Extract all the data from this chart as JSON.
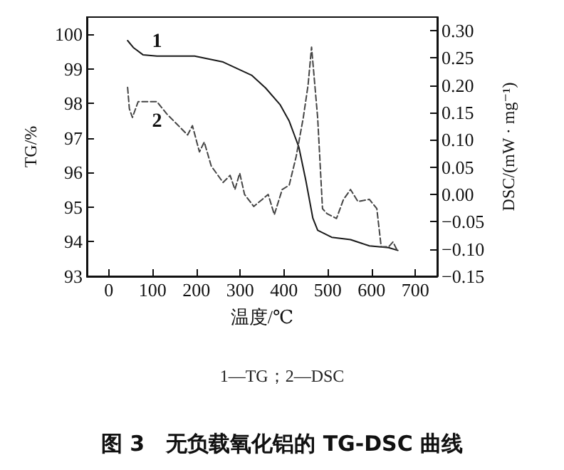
{
  "chart_data": {
    "type": "line",
    "title": "图 3　无负载氧化铝的 TG-DSC 曲线",
    "xlabel": "温度/℃",
    "ylabel": "TG/%",
    "y2label": "DSC/(mW · mg⁻¹)",
    "xlim": [
      -50,
      750
    ],
    "xticks": [
      0,
      100,
      200,
      300,
      400,
      500,
      600,
      700
    ],
    "ylim": [
      93,
      100.5
    ],
    "yticks": [
      93,
      94,
      95,
      96,
      97,
      98,
      99,
      100
    ],
    "y2lim": [
      -0.15,
      0.325
    ],
    "y2ticks": [
      {
        "value": -0.15,
        "label": "−0.15"
      },
      {
        "value": -0.1,
        "label": "−0.10"
      },
      {
        "value": -0.05,
        "label": "−0.05"
      },
      {
        "value": 0,
        "label": "0.00"
      },
      {
        "value": 0.05,
        "label": "0.05"
      },
      {
        "value": 0.1,
        "label": "0.10"
      },
      {
        "value": 0.15,
        "label": "0.15"
      },
      {
        "value": 0.2,
        "label": "0.20"
      },
      {
        "value": 0.25,
        "label": "0.25"
      },
      {
        "value": 0.3,
        "label": "0.30"
      }
    ],
    "grid": false,
    "legend": false,
    "marker": "none",
    "series": [
      {
        "name": "1",
        "color": "#1a1a1a",
        "line_style": "solid",
        "x": [
          43,
          56,
          78,
          110,
          196,
          261,
          326,
          358,
          391,
          412,
          434,
          450,
          466,
          477,
          509,
          552,
          595,
          639,
          660
        ],
        "values": [
          99.82,
          99.62,
          99.41,
          99.37,
          99.37,
          99.2,
          98.82,
          98.45,
          97.97,
          97.49,
          96.74,
          95.77,
          94.68,
          94.33,
          94.13,
          94.06,
          93.88,
          93.83,
          93.75
        ]
      },
      {
        "name": "2",
        "color": "#444444",
        "line_style": "dashed",
        "axis": "y2",
        "x": [
          43,
          47,
          54,
          67,
          110,
          132,
          164,
          180,
          191,
          207,
          218,
          234,
          261,
          277,
          288,
          299,
          310,
          331,
          364,
          378,
          396,
          412,
          428,
          444,
          455,
          463,
          477,
          488,
          498,
          520,
          536,
          552,
          569,
          595,
          612,
          622,
          639,
          649,
          660
        ],
        "values": [
          0.196,
          0.157,
          0.141,
          0.17,
          0.17,
          0.148,
          0.122,
          0.109,
          0.126,
          0.078,
          0.096,
          0.052,
          0.022,
          0.035,
          0.009,
          0.039,
          0.0,
          -0.022,
          0.0,
          -0.037,
          0.009,
          0.017,
          0.07,
          0.14,
          0.2,
          0.27,
          0.14,
          -0.026,
          -0.035,
          -0.044,
          -0.009,
          0.009,
          -0.013,
          -0.009,
          -0.026,
          -0.096,
          -0.096,
          -0.087,
          -0.105
        ]
      }
    ],
    "annotations": [
      "1—TG；2—DSC"
    ]
  }
}
